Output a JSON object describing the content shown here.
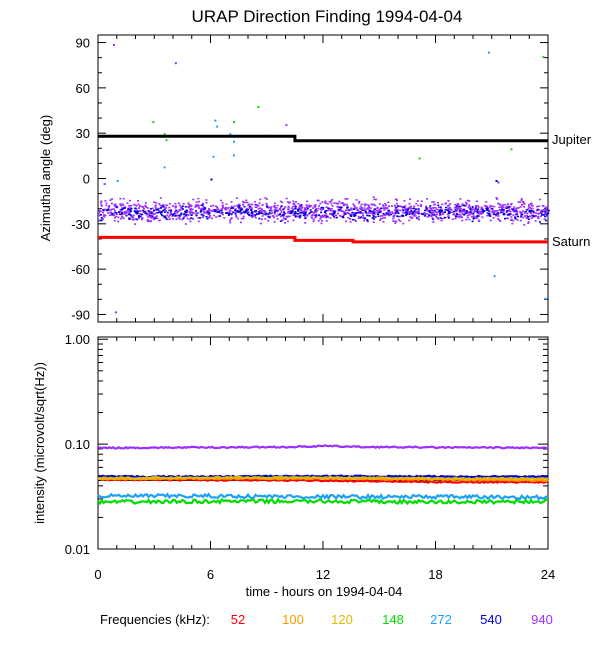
{
  "chart_data": [
    {
      "type": "scatter",
      "panel": "azimuth",
      "title": "URAP Direction Finding  1994-04-04",
      "ylabel": "Azimuthal angle (deg)",
      "xlim": [
        0,
        24
      ],
      "ylim": [
        -95,
        95
      ],
      "yticks": [
        90,
        60,
        30,
        0,
        -30,
        -60,
        -90
      ],
      "grid": false,
      "reference_lines": [
        {
          "name": "Jupiter",
          "color": "#000000",
          "segments": [
            [
              0,
              10.5,
              28
            ],
            [
              10.5,
              24,
              25
            ]
          ]
        },
        {
          "name": "Saturn",
          "color": "#ff0000",
          "segments": [
            [
              0,
              10.5,
              -39
            ],
            [
              10.5,
              13.6,
              -41
            ],
            [
              13.6,
              24,
              -42
            ]
          ]
        }
      ],
      "series": [
        {
          "name": "940",
          "color": "#9b30ff",
          "band": {
            "center": -21,
            "spread": 10
          }
        },
        {
          "name": "540",
          "color": "#0000dd",
          "band": {
            "center": -22,
            "spread": 7
          }
        }
      ],
      "outliers": [
        {
          "x": 0.8,
          "y": 89,
          "c": "#9b30ff"
        },
        {
          "x": 4.1,
          "y": 77,
          "c": "#9b30ff"
        },
        {
          "x": 2.9,
          "y": 38,
          "c": "#00dd00"
        },
        {
          "x": 3.5,
          "y": 30,
          "c": "#00dd00"
        },
        {
          "x": 3.6,
          "y": 26,
          "c": "#00dd00"
        },
        {
          "x": 6.2,
          "y": 39,
          "c": "#1ea0ff"
        },
        {
          "x": 6.3,
          "y": 35,
          "c": "#1ea0ff"
        },
        {
          "x": 7.2,
          "y": 38,
          "c": "#00dd00"
        },
        {
          "x": 7.0,
          "y": 30,
          "c": "#1ea0ff"
        },
        {
          "x": 7.2,
          "y": 25,
          "c": "#1ea0ff"
        },
        {
          "x": 7.2,
          "y": 16,
          "c": "#1ea0ff"
        },
        {
          "x": 6.1,
          "y": 15,
          "c": "#1ea0ff"
        },
        {
          "x": 8.5,
          "y": 48,
          "c": "#00dd00"
        },
        {
          "x": 9.1,
          "y": 29,
          "c": "#00dd00"
        },
        {
          "x": 10.0,
          "y": 36,
          "c": "#9b30ff"
        },
        {
          "x": 3.5,
          "y": 8,
          "c": "#1ea0ff"
        },
        {
          "x": 1.0,
          "y": -1,
          "c": "#1ea0ff"
        },
        {
          "x": 6.0,
          "y": 0,
          "c": "#0000dd"
        },
        {
          "x": 17.1,
          "y": 14,
          "c": "#00dd00"
        },
        {
          "x": 20.8,
          "y": 84,
          "c": "#1ea0ff"
        },
        {
          "x": 23.7,
          "y": 81,
          "c": "#00dd00"
        },
        {
          "x": 22.0,
          "y": 20,
          "c": "#00dd00"
        },
        {
          "x": 21.1,
          "y": -64,
          "c": "#1ea0ff"
        },
        {
          "x": 23.8,
          "y": -79,
          "c": "#1ea0ff"
        },
        {
          "x": 0.9,
          "y": -88,
          "c": "#9b30ff"
        },
        {
          "x": 0.3,
          "y": -3,
          "c": "#9b30ff"
        },
        {
          "x": 21.2,
          "y": -1,
          "c": "#0000dd"
        },
        {
          "x": 21.3,
          "y": -2,
          "c": "#9b30ff"
        }
      ]
    },
    {
      "type": "line",
      "panel": "intensity",
      "ylabel": "intensity (microvolt/sqrt(Hz))",
      "xlabel": "time - hours on 1994-04-04",
      "xlim": [
        0,
        24
      ],
      "xticks": [
        0,
        6,
        12,
        18,
        24
      ],
      "ylim": [
        0.01,
        1.05
      ],
      "yscale": "log",
      "yticks": [
        1.0,
        0.1,
        0.01
      ],
      "yticklabels": [
        "1.00",
        "0.10",
        "0.01"
      ],
      "grid": false,
      "series": [
        {
          "name": "940",
          "color": "#9b30ff",
          "points": [
            [
              0,
              0.092
            ],
            [
              6,
              0.093
            ],
            [
              10.5,
              0.094
            ],
            [
              12,
              0.096
            ],
            [
              14,
              0.094
            ],
            [
              18,
              0.093
            ],
            [
              24,
              0.092
            ]
          ]
        },
        {
          "name": "540",
          "color": "#0000dd",
          "points": [
            [
              0,
              0.049
            ],
            [
              6,
              0.049
            ],
            [
              12,
              0.0495
            ],
            [
              18,
              0.049
            ],
            [
              24,
              0.049
            ]
          ]
        },
        {
          "name": "52",
          "color": "#ff0000",
          "points": [
            [
              0,
              0.046
            ],
            [
              6,
              0.0455
            ],
            [
              12,
              0.045
            ],
            [
              18,
              0.0435
            ],
            [
              24,
              0.0435
            ]
          ]
        },
        {
          "name": "100",
          "color": "#ff9900",
          "points": [
            [
              0,
              0.0465
            ],
            [
              6,
              0.047
            ],
            [
              12,
              0.047
            ],
            [
              18,
              0.046
            ],
            [
              24,
              0.045
            ]
          ]
        },
        {
          "name": "120",
          "color": "#ddbb00",
          "points": [
            [
              0,
              0.0475
            ],
            [
              6,
              0.048
            ],
            [
              12,
              0.048
            ],
            [
              18,
              0.047
            ],
            [
              24,
              0.047
            ]
          ]
        },
        {
          "name": "272",
          "color": "#1ea0ff",
          "points": [
            [
              0,
              0.032
            ],
            [
              6,
              0.032
            ],
            [
              12,
              0.0315
            ],
            [
              18,
              0.0315
            ],
            [
              24,
              0.031
            ]
          ]
        },
        {
          "name": "148",
          "color": "#00dd00",
          "points": [
            [
              0,
              0.028
            ],
            [
              6,
              0.0285
            ],
            [
              12,
              0.0285
            ],
            [
              18,
              0.028
            ],
            [
              24,
              0.0285
            ]
          ]
        }
      ],
      "reference_level": 0.045
    }
  ],
  "legend": {
    "label": "Frequencies (kHz):",
    "entries": [
      {
        "name": "52",
        "color": "#ff0000"
      },
      {
        "name": "100",
        "color": "#ff9900"
      },
      {
        "name": "120",
        "color": "#ddbb00"
      },
      {
        "name": "148",
        "color": "#00dd00"
      },
      {
        "name": "272",
        "color": "#1ea0ff"
      },
      {
        "name": "540",
        "color": "#0000dd"
      },
      {
        "name": "940",
        "color": "#9b30ff"
      }
    ]
  }
}
